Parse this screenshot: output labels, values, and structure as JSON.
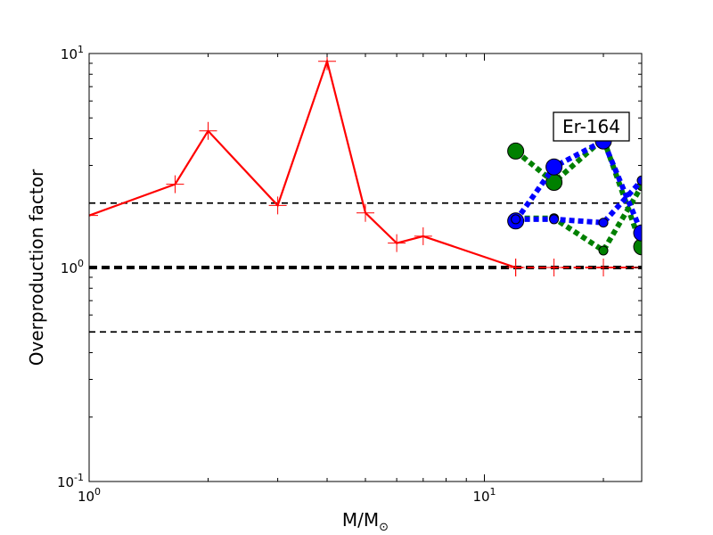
{
  "chart_data": {
    "type": "line",
    "xlabel": "M/M",
    "xlabel_sub": "⊙",
    "ylabel": "Overproduction factor",
    "xscale": "log",
    "yscale": "log",
    "xlim": [
      1,
      25
    ],
    "ylim": [
      0.1,
      10
    ],
    "xticks": [
      {
        "value": 1,
        "base": "10",
        "exp": "0"
      },
      {
        "value": 10,
        "base": "10",
        "exp": "1"
      }
    ],
    "yticks": [
      {
        "value": 0.1,
        "base": "10",
        "exp": "-1"
      },
      {
        "value": 1,
        "base": "10",
        "exp": "0"
      },
      {
        "value": 10,
        "base": "10",
        "exp": "1"
      }
    ],
    "annotation": "Er-164",
    "reference_lines": [
      {
        "y": 2.0,
        "color": "#000000",
        "style": "dashed",
        "weight": "thin"
      },
      {
        "y": 1.0,
        "color": "#000000",
        "style": "dashed",
        "weight": "thick"
      },
      {
        "y": 0.5,
        "color": "#000000",
        "style": "dashed",
        "weight": "thin"
      }
    ],
    "series": [
      {
        "color": "#ff0000",
        "style": "solid",
        "marker": "plus",
        "points": [
          [
            1.0,
            1.75
          ],
          [
            1.65,
            2.45
          ],
          [
            2.0,
            4.35
          ],
          [
            3.0,
            1.95
          ],
          [
            4.0,
            9.2
          ],
          [
            5.0,
            1.8
          ],
          [
            6.0,
            1.3
          ],
          [
            7.0,
            1.4
          ],
          [
            12.0,
            1.0
          ]
        ]
      },
      {
        "color": "#ff0000",
        "style": "dashed",
        "marker": "plus",
        "points": [
          [
            12.0,
            1.0
          ],
          [
            15.0,
            1.0
          ],
          [
            20.0,
            1.0
          ],
          [
            25.0,
            1.0
          ]
        ]
      },
      {
        "color": "#008000",
        "style": "dotted",
        "marker": "circle",
        "marker_size": 9,
        "points": [
          [
            12.0,
            3.5
          ],
          [
            15.0,
            2.5
          ],
          [
            20.0,
            4.0
          ],
          [
            25.0,
            1.25
          ]
        ]
      },
      {
        "color": "#008000",
        "style": "dotted",
        "marker": "circle",
        "marker_size": 5,
        "points": [
          [
            12.0,
            1.7
          ],
          [
            15.0,
            1.7
          ],
          [
            20.0,
            1.2
          ],
          [
            25.0,
            2.4
          ]
        ]
      },
      {
        "color": "#0000ff",
        "style": "dotted",
        "marker": "circle",
        "marker_size": 9,
        "points": [
          [
            12.0,
            1.65
          ],
          [
            15.0,
            2.95
          ],
          [
            20.0,
            3.9
          ],
          [
            25.0,
            1.45
          ]
        ]
      },
      {
        "color": "#0000ff",
        "style": "dotted",
        "marker": "circle",
        "marker_size": 5,
        "points": [
          [
            12.0,
            1.68
          ],
          [
            15.0,
            1.68
          ],
          [
            20.0,
            1.62
          ],
          [
            25.0,
            2.55
          ]
        ]
      }
    ]
  }
}
